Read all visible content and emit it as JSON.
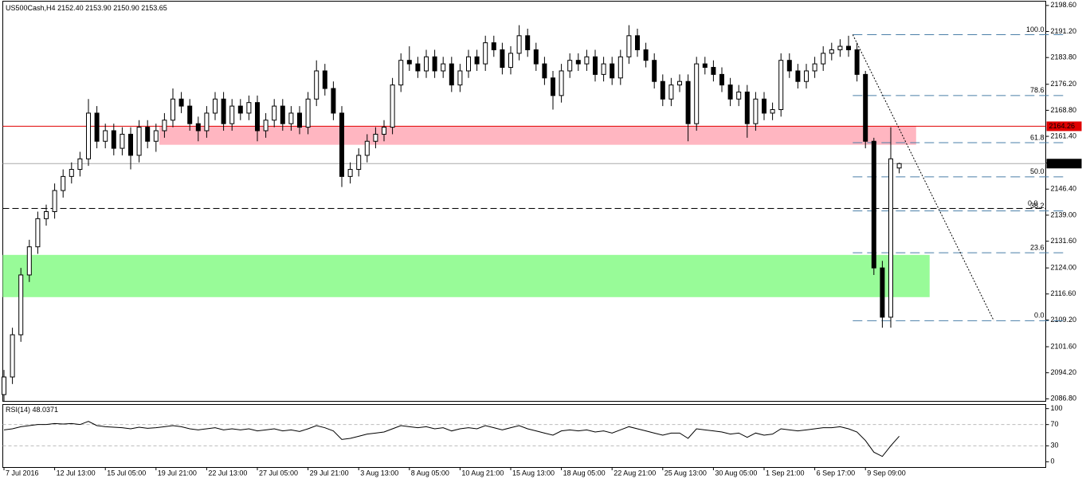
{
  "chart_data": {
    "type": "candlestick",
    "symbol": "US500Cash,H4",
    "last_labels": [
      "2152.40",
      "2153.90",
      "2150.90",
      "2153.65"
    ],
    "categories": [
      "7 Jul 2016",
      null,
      null,
      null,
      null,
      null,
      "12 Jul 13:00",
      null,
      null,
      null,
      null,
      null,
      "15 Jul 05:00",
      null,
      null,
      null,
      null,
      null,
      "19 Jul 21:00",
      null,
      null,
      null,
      null,
      null,
      "22 Jul 13:00",
      null,
      null,
      null,
      null,
      null,
      "27 Jul 05:00",
      null,
      null,
      null,
      null,
      null,
      "29 Jul 21:00",
      null,
      null,
      null,
      null,
      null,
      "3 Aug 13:00",
      null,
      null,
      null,
      null,
      null,
      "8 Aug 05:00",
      null,
      null,
      null,
      null,
      null,
      "10 Aug 21:00",
      null,
      null,
      null,
      null,
      null,
      "15 Aug 13:00",
      null,
      null,
      null,
      null,
      null,
      "18 Aug 05:00",
      null,
      null,
      null,
      null,
      null,
      "22 Aug 21:00",
      null,
      null,
      null,
      null,
      null,
      "25 Aug 13:00",
      null,
      null,
      null,
      null,
      null,
      "30 Aug 05:00",
      null,
      null,
      null,
      null,
      null,
      "1 Sep 21:00",
      null,
      null,
      null,
      null,
      null,
      "6 Sep 17:00",
      null,
      null,
      null,
      null,
      null,
      "9 Sep 09:00",
      null,
      null,
      null,
      null
    ],
    "open": [
      2088,
      2093,
      2105,
      2122,
      2130,
      2138,
      2140,
      2146,
      2150,
      2152,
      2155,
      2168,
      2160,
      2163,
      2158,
      2162,
      2156,
      2164,
      2160,
      2163,
      2166,
      2172,
      2170,
      2165,
      2163,
      2168,
      2172,
      2165,
      2170,
      2168,
      2171,
      2163,
      2166,
      2170,
      2165,
      2168,
      2164,
      2172,
      2180,
      2175,
      2168,
      2150,
      2152,
      2156,
      2160,
      2162,
      2164,
      2176,
      2183,
      2182,
      2180,
      2184,
      2180,
      2182,
      2176,
      2180,
      2184,
      2182,
      2188,
      2186,
      2181,
      2185,
      2190,
      2186,
      2182,
      2178,
      2173,
      2180,
      2183,
      2182,
      2184,
      2179,
      2182,
      2178,
      2184,
      2190,
      2186,
      2183,
      2177,
      2172,
      2176,
      2177,
      2165,
      2182,
      2181,
      2179,
      2176,
      2172,
      2174,
      2165,
      2172,
      2168,
      2169,
      2183,
      2180,
      2177,
      2180,
      2182,
      2185,
      2186,
      2187,
      2186,
      2179,
      2160,
      2124,
      2110,
      2152.4
    ],
    "high": [
      2095,
      2107,
      2124,
      2132,
      2140,
      2142,
      2148,
      2152,
      2154,
      2157,
      2172,
      2170,
      2165,
      2165,
      2164,
      2164,
      2166,
      2166,
      2165,
      2168,
      2175,
      2174,
      2172,
      2167,
      2170,
      2174,
      2174,
      2172,
      2172,
      2173,
      2173,
      2168,
      2172,
      2172,
      2170,
      2170,
      2174,
      2183,
      2182,
      2177,
      2170,
      2154,
      2158,
      2162,
      2164,
      2166,
      2178,
      2185,
      2187,
      2184,
      2186,
      2186,
      2184,
      2184,
      2182,
      2186,
      2186,
      2190,
      2190,
      2188,
      2187,
      2193,
      2192,
      2188,
      2184,
      2180,
      2182,
      2185,
      2185,
      2186,
      2186,
      2184,
      2184,
      2186,
      2193,
      2192,
      2188,
      2185,
      2179,
      2178,
      2179,
      2179,
      2184,
      2184,
      2183,
      2181,
      2178,
      2176,
      2176,
      2174,
      2174,
      2171,
      2185,
      2185,
      2182,
      2182,
      2184,
      2187,
      2188,
      2189,
      2190,
      2188,
      2180,
      2161,
      2126,
      2164,
      2153.9
    ],
    "low": [
      2086,
      2091,
      2103,
      2120,
      2128,
      2136,
      2138,
      2144,
      2148,
      2150,
      2153,
      2158,
      2158,
      2156,
      2156,
      2152,
      2154,
      2158,
      2157,
      2161,
      2164,
      2168,
      2163,
      2160,
      2161,
      2166,
      2163,
      2163,
      2166,
      2166,
      2160,
      2161,
      2164,
      2163,
      2163,
      2162,
      2162,
      2170,
      2173,
      2166,
      2147,
      2148,
      2150,
      2154,
      2158,
      2160,
      2162,
      2174,
      2180,
      2178,
      2178,
      2178,
      2178,
      2174,
      2174,
      2178,
      2180,
      2180,
      2184,
      2179,
      2179,
      2183,
      2184,
      2180,
      2176,
      2169,
      2171,
      2178,
      2180,
      2180,
      2177,
      2177,
      2176,
      2176,
      2182,
      2184,
      2181,
      2175,
      2170,
      2170,
      2174,
      2160,
      2163,
      2179,
      2177,
      2174,
      2170,
      2170,
      2161,
      2163,
      2166,
      2166,
      2167,
      2178,
      2175,
      2175,
      2178,
      2180,
      2183,
      2184,
      2184,
      2177,
      2158,
      2122,
      2107,
      2107,
      2150.9
    ],
    "close": [
      2093,
      2105,
      2122,
      2130,
      2138,
      2140,
      2146,
      2150,
      2152,
      2155,
      2168,
      2160,
      2163,
      2158,
      2162,
      2156,
      2164,
      2160,
      2163,
      2166,
      2172,
      2170,
      2165,
      2163,
      2168,
      2172,
      2165,
      2170,
      2168,
      2171,
      2163,
      2166,
      2170,
      2165,
      2168,
      2164,
      2172,
      2180,
      2175,
      2168,
      2150,
      2152,
      2156,
      2160,
      2162,
      2164,
      2176,
      2183,
      2182,
      2180,
      2184,
      2180,
      2182,
      2176,
      2180,
      2184,
      2182,
      2188,
      2186,
      2181,
      2185,
      2190,
      2186,
      2182,
      2178,
      2173,
      2180,
      2183,
      2182,
      2184,
      2179,
      2182,
      2178,
      2184,
      2190,
      2186,
      2183,
      2177,
      2172,
      2176,
      2177,
      2165,
      2182,
      2181,
      2179,
      2176,
      2172,
      2174,
      2165,
      2172,
      2168,
      2169,
      2183,
      2180,
      2177,
      2180,
      2182,
      2185,
      2186,
      2187,
      2186,
      2179,
      2160,
      2124,
      2110,
      2155,
      2153.65
    ],
    "ylim": [
      2086.2,
      2199.7
    ],
    "yticks": [
      {
        "value": 2198.6,
        "label": "2198.60"
      },
      {
        "value": 2191.2,
        "label": "2191.20"
      },
      {
        "value": 2183.8,
        "label": "2183.80"
      },
      {
        "value": 2176.2,
        "label": "2176.20"
      },
      {
        "value": 2168.8,
        "label": "2168.80"
      },
      {
        "value": 2161.4,
        "label": "2161.40"
      },
      {
        "value": 2153.8,
        "label": "2153.80"
      },
      {
        "value": 2146.4,
        "label": "2146.40"
      },
      {
        "value": 2139.0,
        "label": "2139.00"
      },
      {
        "value": 2131.6,
        "label": "2131.60"
      },
      {
        "value": 2124.0,
        "label": "2124.00"
      },
      {
        "value": 2116.6,
        "label": "2116.60"
      },
      {
        "value": 2109.2,
        "label": "2109.20"
      },
      {
        "value": 2101.6,
        "label": "2101.60"
      },
      {
        "value": 2094.2,
        "label": "2094.20"
      },
      {
        "value": 2086.8,
        "label": "2086.80"
      }
    ],
    "zones": [
      {
        "from": 2159.0,
        "to": 2164.26,
        "start": 18.4,
        "end": 108,
        "color": "#ffb6c1"
      },
      {
        "from": 2115.7,
        "to": 2127.7,
        "start": -0.2,
        "end": 109.6,
        "color": "#98fb98"
      }
    ],
    "resistance": {
      "value": 2164.26,
      "color": "#e00000"
    },
    "hline": {
      "value": 2140.9,
      "label": "0.0"
    },
    "fib": {
      "start": 100.5,
      "color": "#4a7fa8",
      "levels": [
        {
          "value": 2190.3,
          "label": "100.0"
        },
        {
          "value": 2173.0,
          "label": "78.6"
        },
        {
          "value": 2159.6,
          "label": "61.8"
        },
        {
          "value": 2149.9,
          "label": "50.0"
        },
        {
          "value": 2140.2,
          "label": "38.2"
        },
        {
          "value": 2128.3,
          "label": "23.6"
        },
        {
          "value": 2109.0,
          "label": "0.0"
        }
      ]
    },
    "trendline": {
      "x": [
        100.5,
        117.2
      ],
      "y": [
        2190.3,
        2109.0
      ]
    },
    "rsi": {
      "name": "RSI(14)",
      "ylim": [
        -10,
        107
      ],
      "yticks": [
        100,
        70,
        30,
        0
      ],
      "levels": [
        70,
        30
      ],
      "values": [
        60,
        62,
        66,
        68,
        70,
        70,
        72,
        71,
        72,
        70,
        76,
        68,
        66,
        65,
        64,
        62,
        65,
        63,
        64,
        66,
        68,
        66,
        62,
        60,
        62,
        64,
        60,
        62,
        60,
        62,
        58,
        60,
        62,
        58,
        60,
        57,
        62,
        68,
        64,
        58,
        42,
        44,
        48,
        52,
        54,
        56,
        62,
        68,
        66,
        64,
        66,
        62,
        64,
        58,
        62,
        64,
        62,
        68,
        64,
        60,
        64,
        68,
        62,
        58,
        54,
        50,
        58,
        60,
        58,
        60,
        56,
        58,
        54,
        60,
        66,
        62,
        58,
        54,
        50,
        54,
        54,
        44,
        62,
        60,
        58,
        56,
        52,
        54,
        46,
        54,
        50,
        52,
        62,
        60,
        58,
        60,
        62,
        64,
        64,
        66,
        62,
        56,
        40,
        18,
        10,
        30,
        48.0371
      ]
    }
  }
}
